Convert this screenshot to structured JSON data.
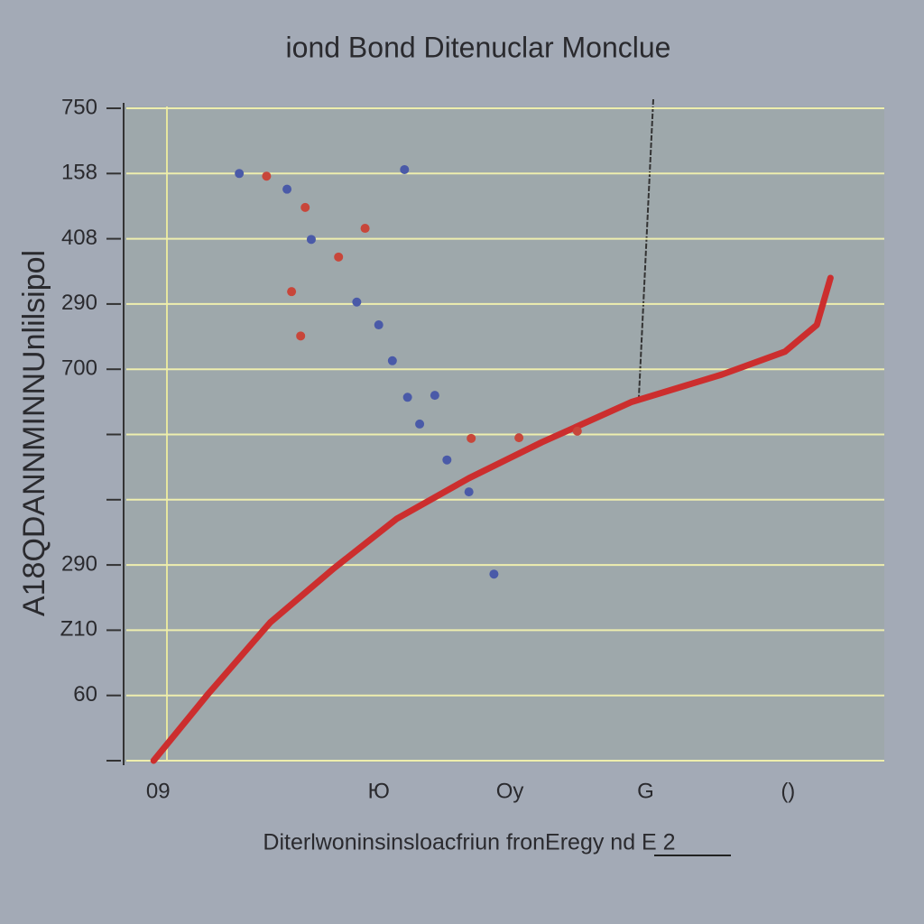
{
  "chart_data": {
    "type": "line",
    "title": "iond Bond Ditenuclar  Monclue",
    "x_label": "Diterlwoninsinsloacfriun fronEregy  nd E 2",
    "y_label": "A18QDANNMINNUnlilsipol",
    "xlim": [
      0,
      10
    ],
    "ylim": [
      0,
      10
    ],
    "xticks": [
      {
        "value": 0.42,
        "label": "09"
      },
      {
        "value": 3.33,
        "label": "Ю"
      },
      {
        "value": 5.06,
        "label": "Oy"
      },
      {
        "value": 6.85,
        "label": "G"
      },
      {
        "value": 8.73,
        "label": "()"
      }
    ],
    "yticks": [
      {
        "value": 0,
        "label": null
      },
      {
        "value": 1,
        "label": "60"
      },
      {
        "value": 2,
        "label": "Z10"
      },
      {
        "value": 3,
        "label": "290"
      },
      {
        "value": 4,
        "label": null
      },
      {
        "value": 5,
        "label": null
      },
      {
        "value": 6,
        "label": "700"
      },
      {
        "value": 7,
        "label": "290"
      },
      {
        "value": 8,
        "label": "408"
      },
      {
        "value": 9,
        "label": "158"
      },
      {
        "value": 10,
        "label": "750"
      }
    ],
    "grid": true,
    "grid_color": "#eeeeae",
    "series": [
      {
        "kind": "line",
        "color": "#cc2e2e",
        "x": [
          0.36,
          1.07,
          1.9,
          2.74,
          3.57,
          4.52,
          5.48,
          6.67,
          7.86,
          8.69,
          9.11,
          9.29
        ],
        "values": [
          0,
          1.01,
          2.12,
          2.95,
          3.71,
          4.33,
          4.88,
          5.5,
          5.92,
          6.27,
          6.68,
          7.4
        ]
      },
      {
        "kind": "scatter",
        "color": "#4a5aa8",
        "x": [
          1.49,
          2.12,
          2.44,
          3.04,
          3.33,
          3.51,
          3.71,
          4.07,
          3.87,
          4.23,
          4.52,
          4.85,
          3.67
        ],
        "values": [
          9.0,
          8.76,
          7.99,
          7.03,
          6.68,
          6.13,
          5.57,
          5.6,
          5.16,
          4.61,
          4.12,
          2.86,
          9.06
        ]
      },
      {
        "kind": "scatter",
        "color": "#c8463a",
        "x": [
          1.85,
          2.36,
          2.8,
          3.15,
          2.18,
          2.3,
          4.55,
          5.18,
          5.95
        ],
        "values": [
          8.96,
          8.48,
          7.72,
          8.16,
          7.19,
          6.51,
          4.94,
          4.95,
          5.05
        ]
      }
    ]
  }
}
